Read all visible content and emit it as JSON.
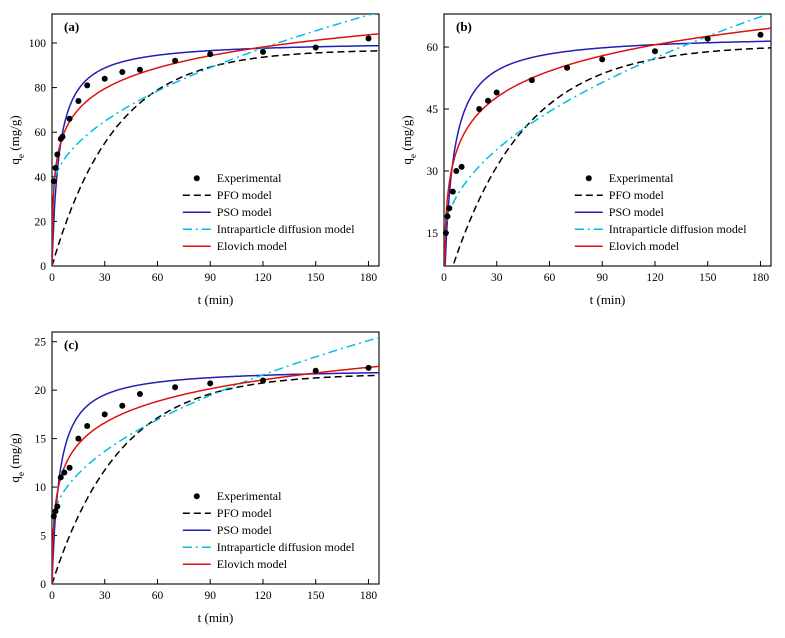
{
  "page": {
    "background": "#ffffff"
  },
  "chart_data": [
    {
      "type": "line",
      "panel_label": "(a)",
      "xlabel": "t (min)",
      "ylabel": {
        "base": "q",
        "sub": "e",
        "rest": " (mg/g)"
      },
      "xlim": [
        0,
        186
      ],
      "xticks": [
        0,
        30,
        60,
        90,
        120,
        150,
        180
      ],
      "ylim": [
        0,
        113
      ],
      "yticks": [
        0,
        20,
        40,
        60,
        80,
        100
      ],
      "legend": {
        "x": 0.4,
        "y": 0.62
      },
      "experimental": {
        "label": "Experimental",
        "color": "#000000",
        "t": [
          1,
          2,
          3,
          5,
          6,
          10,
          15,
          20,
          30,
          40,
          50,
          70,
          90,
          120,
          150,
          180
        ],
        "q": [
          38,
          44,
          50,
          57,
          58,
          66,
          74,
          81,
          84,
          87,
          88,
          92,
          95,
          96,
          98,
          102
        ]
      },
      "models": [
        {
          "label": "PFO model",
          "type": "pfo",
          "color": "#000000",
          "dash": "7,4",
          "params": {
            "qe": 97,
            "k": 0.028
          }
        },
        {
          "label": "PSO model",
          "type": "pso",
          "color": "#2020b4",
          "dash": "",
          "params": {
            "qe": 101,
            "k": 0.0024
          }
        },
        {
          "label": "Intraparticle diffusion model",
          "type": "ipd",
          "color": "#00bde6",
          "dash": "9,4,2,4",
          "params": {
            "c": 32,
            "kid": 6.0
          }
        },
        {
          "label": "Elovich model",
          "type": "elovich",
          "color": "#e01010",
          "dash": "",
          "params": {
            "B": 13.5,
            "ab": 12
          }
        }
      ]
    },
    {
      "type": "line",
      "panel_label": "(b)",
      "xlabel": "t (min)",
      "ylabel": {
        "base": "q",
        "sub": "e",
        "rest": " (mg/g)"
      },
      "xlim": [
        0,
        186
      ],
      "xticks": [
        0,
        30,
        60,
        90,
        120,
        150,
        180
      ],
      "ylim": [
        7,
        68
      ],
      "yticks": [
        15,
        30,
        45,
        60
      ],
      "legend": {
        "x": 0.4,
        "y": 0.62
      },
      "experimental": {
        "label": "Experimental",
        "color": "#000000",
        "t": [
          1,
          2,
          3,
          5,
          7,
          10,
          20,
          25,
          30,
          50,
          70,
          90,
          120,
          150,
          180
        ],
        "q": [
          15,
          19,
          21,
          25,
          30,
          31,
          45,
          47,
          49,
          52,
          55,
          57,
          59,
          62,
          63
        ]
      },
      "models": [
        {
          "label": "PFO model",
          "type": "pfo",
          "color": "#000000",
          "dash": "7,4",
          "params": {
            "qe": 60.5,
            "k": 0.024
          }
        },
        {
          "label": "PSO model",
          "type": "pso",
          "color": "#2020b4",
          "dash": "",
          "params": {
            "qe": 63,
            "k": 0.0033
          }
        },
        {
          "label": "Intraparticle diffusion model",
          "type": "ipd",
          "color": "#00bde6",
          "dash": "9,4,2,4",
          "params": {
            "c": 13,
            "kid": 4.05
          }
        },
        {
          "label": "Elovich model",
          "type": "elovich",
          "color": "#e01010",
          "dash": "",
          "params": {
            "B": 9.2,
            "ab": 6
          }
        }
      ]
    },
    {
      "type": "line",
      "panel_label": "(c)",
      "xlabel": "t (min)",
      "ylabel": {
        "base": "q",
        "sub": "e",
        "rest": " (mg/g)"
      },
      "xlim": [
        0,
        186
      ],
      "xticks": [
        0,
        30,
        60,
        90,
        120,
        150,
        180
      ],
      "ylim": [
        0,
        26
      ],
      "yticks": [
        0,
        5,
        10,
        15,
        20,
        25
      ],
      "legend": {
        "x": 0.4,
        "y": 0.62
      },
      "experimental": {
        "label": "Experimental",
        "color": "#000000",
        "t": [
          1,
          2,
          3,
          5,
          7,
          10,
          15,
          20,
          30,
          40,
          50,
          70,
          90,
          120,
          150,
          180
        ],
        "q": [
          7,
          7.5,
          8,
          11,
          11.5,
          12,
          15,
          16.3,
          17.5,
          18.4,
          19.6,
          20.3,
          20.7,
          21,
          22,
          22.3
        ]
      },
      "models": [
        {
          "label": "PFO model",
          "type": "pfo",
          "color": "#000000",
          "dash": "7,4",
          "params": {
            "qe": 21.7,
            "k": 0.026
          }
        },
        {
          "label": "PSO model",
          "type": "pso",
          "color": "#2020b4",
          "dash": "",
          "params": {
            "qe": 22.3,
            "k": 0.0105
          }
        },
        {
          "label": "Intraparticle diffusion model",
          "type": "ipd",
          "color": "#00bde6",
          "dash": "9,4,2,4",
          "params": {
            "c": 5.8,
            "kid": 1.44
          }
        },
        {
          "label": "Elovich model",
          "type": "elovich",
          "color": "#e01010",
          "dash": "",
          "params": {
            "B": 3.2,
            "ab": 6
          }
        }
      ]
    }
  ]
}
